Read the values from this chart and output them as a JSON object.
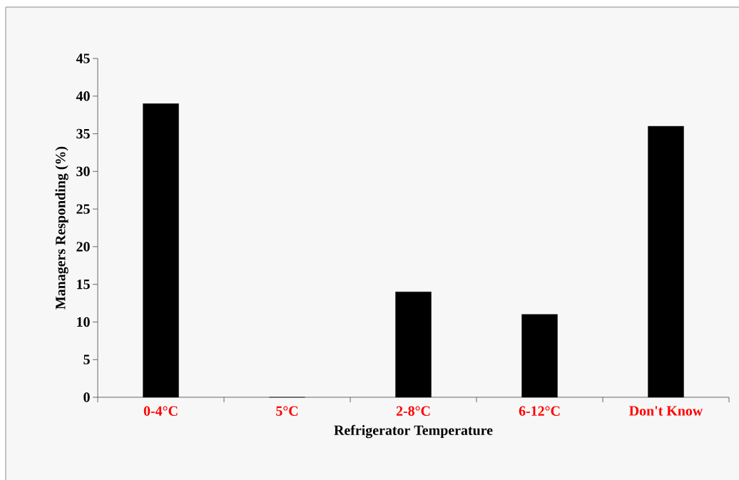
{
  "chart_data": {
    "type": "bar",
    "xlabel": "Refrigerator Temperature",
    "ylabel": "Managers Responding (%)",
    "categories": [
      "0-4°C",
      "5°C",
      "2-8°C",
      "6-12°C",
      "Don't Know"
    ],
    "values": [
      39,
      0,
      14,
      11,
      36
    ],
    "color": "#000000",
    "ylim": [
      0,
      45
    ],
    "yticks": [
      0,
      5,
      10,
      15,
      20,
      25,
      30,
      35,
      40,
      45
    ]
  }
}
